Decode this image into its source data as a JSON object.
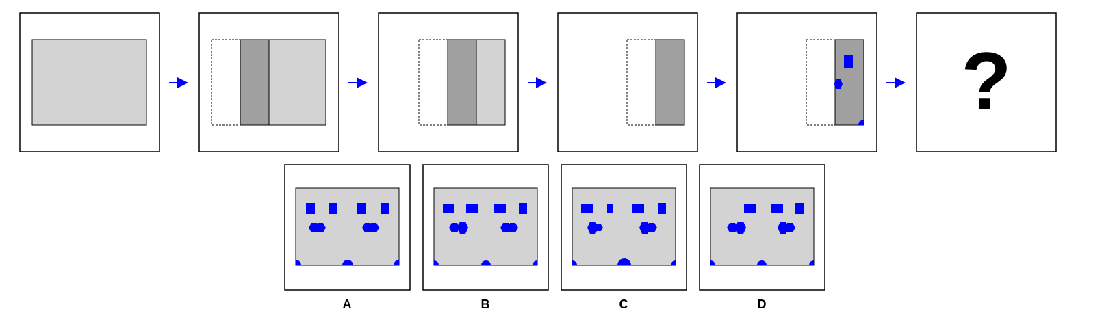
{
  "puzzle": {
    "question_mark": "?",
    "options": [
      "A",
      "B",
      "C",
      "D"
    ]
  },
  "colors": {
    "frame_border": "#000000",
    "paper_light": "#d3d3d3",
    "paper_dark": "#a0a0a0",
    "hole_blue": "#0000ff",
    "arrow_blue": "#0000ff"
  },
  "icons": {
    "arrow": "right-arrow-icon",
    "fold_outline": "dashed-outline",
    "holes": [
      "square-hole",
      "hexagon-hole",
      "semicircle-hole"
    ]
  }
}
